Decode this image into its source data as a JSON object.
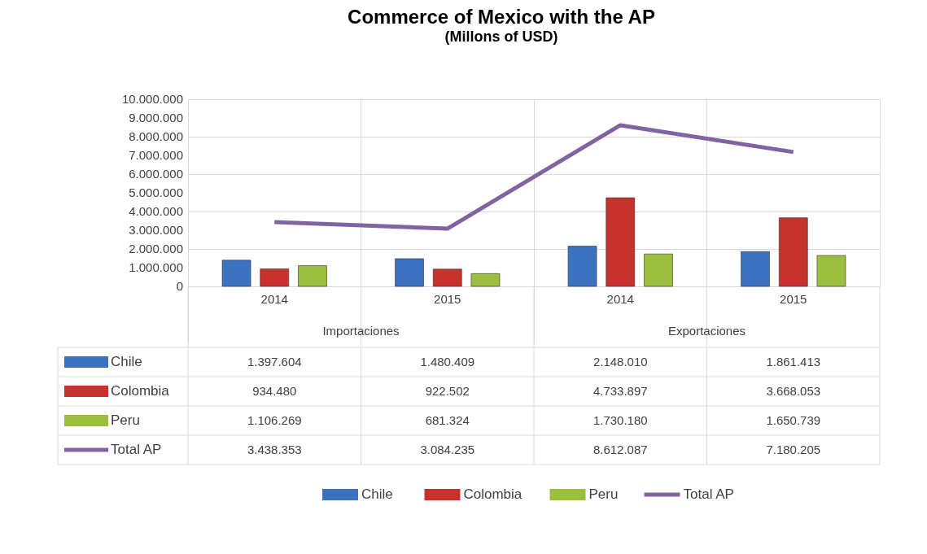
{
  "chart_data": {
    "type": "bar",
    "title": "Commerce of Mexico with the AP",
    "subtitle": "(Millons of USD)",
    "categories": [
      "2014",
      "2015",
      "2014",
      "2015"
    ],
    "annotations": [
      "Importaciones",
      "Exportaciones"
    ],
    "series": [
      {
        "name": "Chile",
        "color": "#3a72c0",
        "type": "bar",
        "values": [
          1397604,
          1480409,
          2148010,
          1861413
        ],
        "value_labels": [
          "1.397.604",
          "1.480.409",
          "2.148.010",
          "1.861.413"
        ]
      },
      {
        "name": "Colombia",
        "color": "#c8322c",
        "type": "bar",
        "values": [
          934480,
          922502,
          4733897,
          3668053
        ],
        "value_labels": [
          "934.480",
          "922.502",
          "4.733.897",
          "3.668.053"
        ]
      },
      {
        "name": "Peru",
        "color": "#9bbf3c",
        "type": "bar",
        "values": [
          1106269,
          681324,
          1730180,
          1650739
        ],
        "value_labels": [
          "1.106.269",
          "681.324",
          "1.730.180",
          "1.650.739"
        ]
      },
      {
        "name": "Total AP",
        "color": "#8064a2",
        "type": "line",
        "values": [
          3438353,
          3084235,
          8612087,
          7180205
        ],
        "value_labels": [
          "3.438.353",
          "3.084.235",
          "8.612.087",
          "7.180.205"
        ]
      }
    ],
    "ylim": [
      0,
      10000000
    ],
    "yticks": [
      0,
      {
        "value": 1000000,
        "label": "1.000.000"
      },
      {
        "value": 2000000,
        "label": "2.000.000"
      },
      {
        "value": 3000000,
        "label": "3.000.000"
      },
      {
        "value": 4000000,
        "label": "4.000.000"
      },
      {
        "value": 5000000,
        "label": "5.000.000"
      },
      {
        "value": 6000000,
        "label": "6.000.000"
      },
      {
        "value": 7000000,
        "label": "7.000.000"
      },
      {
        "value": 8000000,
        "label": "8.000.000"
      },
      {
        "value": 9000000,
        "label": "9.000.000"
      },
      {
        "value": 10000000,
        "label": "10.000.000"
      }
    ],
    "grid": "y",
    "legend": "bottom",
    "line_style": "solid",
    "marker": "none"
  }
}
